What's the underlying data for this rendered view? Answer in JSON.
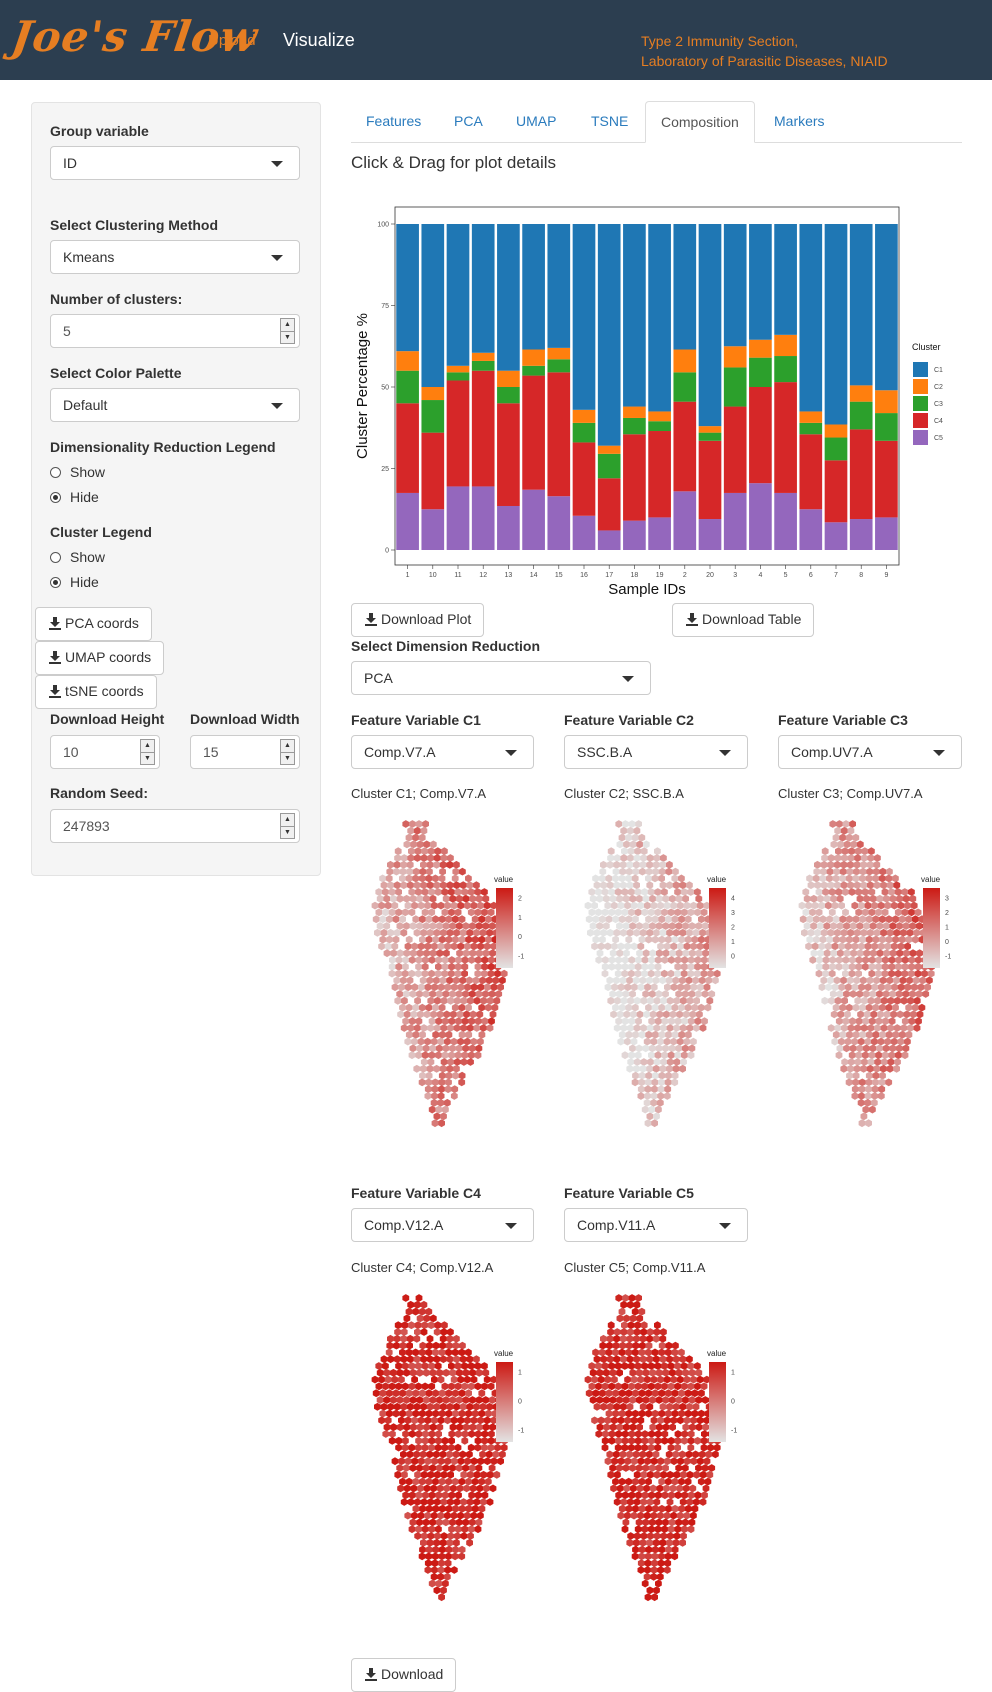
{
  "header": {
    "brand": "Joe's Flow",
    "nav": [
      "Upload",
      "Visualize"
    ],
    "org_line1": "Type 2 Immunity Section,",
    "org_line2": "Laboratory of Parasitic Diseases, NIAID"
  },
  "sidebar": {
    "group_label": "Group variable",
    "group_value": "ID",
    "cluster_method_label": "Select Clustering Method",
    "cluster_method_value": "Kmeans",
    "num_clusters_label": "Number of clusters:",
    "num_clusters_value": "5",
    "palette_label": "Select Color Palette",
    "palette_value": "Default",
    "dr_legend_label": "Dimensionality Reduction Legend",
    "dr_legend_options": [
      "Show",
      "Hide"
    ],
    "dr_legend_selected": "Hide",
    "cluster_legend_label": "Cluster Legend",
    "cluster_legend_options": [
      "Show",
      "Hide"
    ],
    "cluster_legend_selected": "Hide",
    "buttons": [
      "PCA coords",
      "UMAP coords",
      "tSNE coords"
    ],
    "download_height_label": "Download Height",
    "download_height_value": "10",
    "download_width_label": "Download Width",
    "download_width_value": "15",
    "seed_label": "Random Seed:",
    "seed_value": "247893"
  },
  "tabs": [
    "Features",
    "PCA",
    "UMAP",
    "TSNE",
    "Composition",
    "Markers"
  ],
  "active_tab": "Composition",
  "main": {
    "plot_hint": "Click & Drag for plot details",
    "download_plot": "Download Plot",
    "download_table": "Download Table",
    "dim_reduction_label": "Select Dimension Reduction",
    "dim_reduction_value": "PCA",
    "download_button": "Download"
  },
  "features": [
    {
      "label": "Feature Variable C1",
      "value": "Comp.V7.A",
      "title": "Cluster C1; Comp.V7.A",
      "legend_title": "value",
      "ticks": [
        2,
        1,
        0,
        -1
      ],
      "intensity": 0.5
    },
    {
      "label": "Feature Variable C2",
      "value": "SSC.B.A",
      "title": "Cluster C2; SSC.B.A",
      "legend_title": "value",
      "ticks": [
        4,
        3,
        2,
        1,
        0
      ],
      "intensity": 0.15
    },
    {
      "label": "Feature Variable C3",
      "value": "Comp.UV7.A",
      "title": "Cluster C3; Comp.UV7.A",
      "legend_title": "value",
      "ticks": [
        3,
        2,
        1,
        0,
        -1
      ],
      "intensity": 0.42
    },
    {
      "label": "Feature Variable C4",
      "value": "Comp.V12.A",
      "title": "Cluster C4; Comp.V12.A",
      "legend_title": "value",
      "ticks": [
        1,
        0,
        -1
      ],
      "intensity": 0.92
    },
    {
      "label": "Feature Variable C5",
      "value": "Comp.V11.A",
      "title": "Cluster C5; Comp.V11.A",
      "legend_title": "value",
      "ticks": [
        1,
        0,
        -1
      ],
      "intensity": 0.92
    }
  ],
  "colors": {
    "navbar": "#2c3e50",
    "accent": "#e67e22",
    "link": "#2a7bbd",
    "C1": "#1f77b4",
    "C2": "#ff7f0e",
    "C3": "#2ca02c",
    "C4": "#d62728",
    "C5": "#9467bd"
  },
  "chart_data": {
    "type": "bar",
    "stacked": true,
    "xlabel": "Sample IDs",
    "ylabel": "Cluster Percentage %",
    "ylim": [
      0,
      100
    ],
    "yticks": [
      0,
      25,
      50,
      75,
      100
    ],
    "legend_title": "Cluster",
    "legend_position": "right",
    "categories": [
      "1",
      "10",
      "11",
      "12",
      "13",
      "14",
      "15",
      "16",
      "17",
      "18",
      "19",
      "2",
      "20",
      "3",
      "4",
      "5",
      "6",
      "7",
      "8",
      "9"
    ],
    "series": [
      {
        "name": "C5",
        "values": [
          17.5,
          12.5,
          19.5,
          19.5,
          13.5,
          18.5,
          16.5,
          10.5,
          6.0,
          9.0,
          10.0,
          18.0,
          9.5,
          17.5,
          20.5,
          17.5,
          12.5,
          8.5,
          9.5,
          10.0
        ]
      },
      {
        "name": "C4",
        "values": [
          27.5,
          23.5,
          32.5,
          35.5,
          31.5,
          35.0,
          38.0,
          22.5,
          16.0,
          26.5,
          26.5,
          27.5,
          24.0,
          26.5,
          29.5,
          34.0,
          23.0,
          19.0,
          27.5,
          23.5
        ]
      },
      {
        "name": "C3",
        "values": [
          10.0,
          10.0,
          2.5,
          3.0,
          5.0,
          3.0,
          4.0,
          6.0,
          7.5,
          5.0,
          3.0,
          9.0,
          2.5,
          12.0,
          9.0,
          8.0,
          3.5,
          7.0,
          8.5,
          8.5
        ]
      },
      {
        "name": "C2",
        "values": [
          6.0,
          4.0,
          2.0,
          2.5,
          5.0,
          5.0,
          3.5,
          4.0,
          2.5,
          3.5,
          3.0,
          7.0,
          2.0,
          6.5,
          5.5,
          6.5,
          3.5,
          4.0,
          5.0,
          7.0
        ]
      },
      {
        "name": "C1",
        "values": [
          39.0,
          50.0,
          43.5,
          39.5,
          45.0,
          38.5,
          38.0,
          57.0,
          68.0,
          56.0,
          57.5,
          38.5,
          62.0,
          37.5,
          35.5,
          34.0,
          57.5,
          61.5,
          49.5,
          51.0
        ]
      }
    ]
  }
}
